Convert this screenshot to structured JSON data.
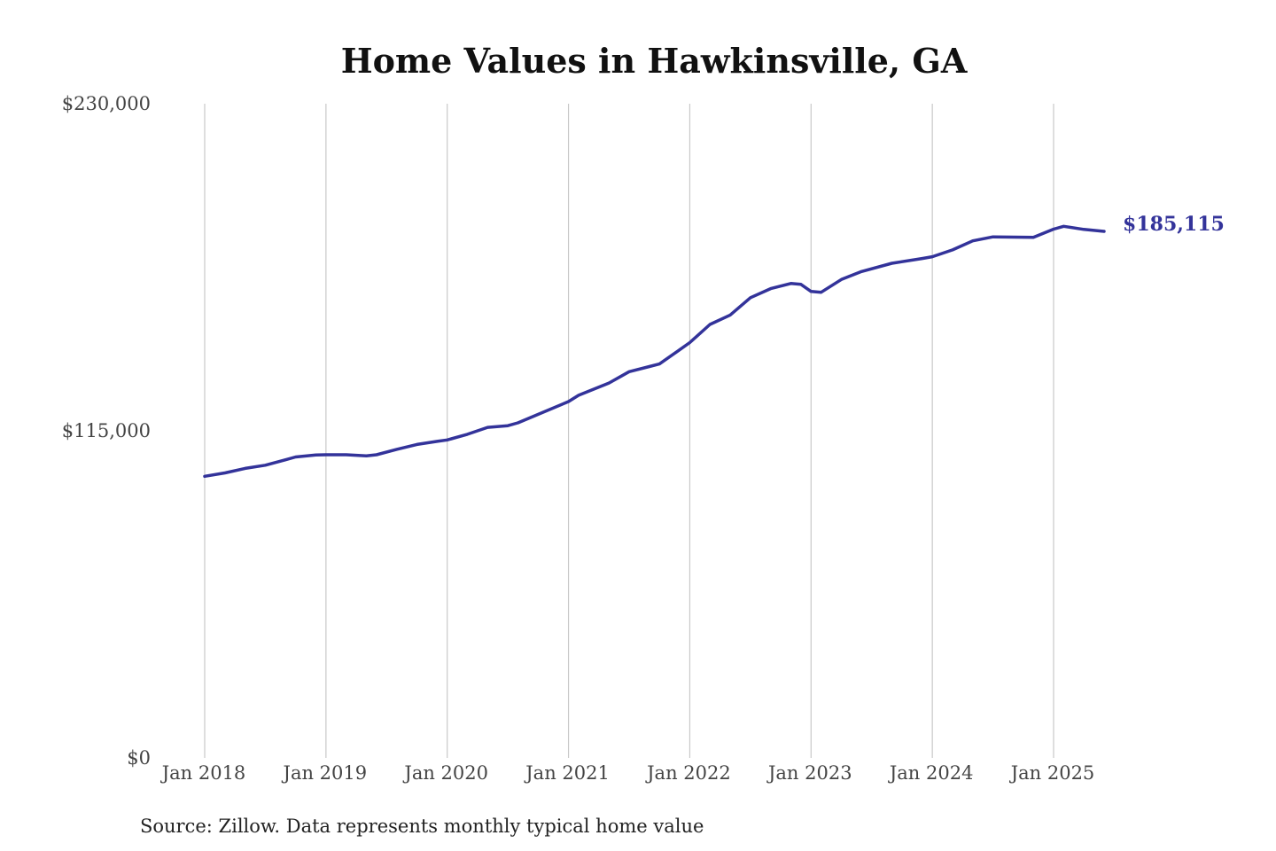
{
  "chart_data": {
    "type": "line",
    "title": "Home Values in Hawkinsville, GA",
    "xlabel": "",
    "ylabel": "",
    "ylim": [
      0,
      230000
    ],
    "y_ticks": [
      {
        "value": 0,
        "label": "$0"
      },
      {
        "value": 115000,
        "label": "$115,000"
      },
      {
        "value": 230000,
        "label": "$230,000"
      }
    ],
    "x_ticks": [
      {
        "value": "2018-01",
        "label": "Jan 2018"
      },
      {
        "value": "2019-01",
        "label": "Jan 2019"
      },
      {
        "value": "2020-01",
        "label": "Jan 2020"
      },
      {
        "value": "2021-01",
        "label": "Jan 2021"
      },
      {
        "value": "2022-01",
        "label": "Jan 2022"
      },
      {
        "value": "2023-01",
        "label": "Jan 2023"
      },
      {
        "value": "2024-01",
        "label": "Jan 2024"
      },
      {
        "value": "2025-01",
        "label": "Jan 2025"
      }
    ],
    "grid": "vertical",
    "series": [
      {
        "color": "#33339a",
        "end_label": "$185,115",
        "points": [
          [
            "2018-01",
            99000
          ],
          [
            "2018-03",
            100200
          ],
          [
            "2018-05",
            101800
          ],
          [
            "2018-07",
            102900
          ],
          [
            "2018-09",
            104800
          ],
          [
            "2018-10",
            105800
          ],
          [
            "2018-12",
            106500
          ],
          [
            "2019-01",
            106600
          ],
          [
            "2019-03",
            106600
          ],
          [
            "2019-05",
            106200
          ],
          [
            "2019-06",
            106600
          ],
          [
            "2019-08",
            108500
          ],
          [
            "2019-10",
            110200
          ],
          [
            "2019-12",
            111300
          ],
          [
            "2020-01",
            111800
          ],
          [
            "2020-03",
            113800
          ],
          [
            "2020-05",
            116200
          ],
          [
            "2020-07",
            116800
          ],
          [
            "2020-08",
            117800
          ],
          [
            "2020-10",
            120800
          ],
          [
            "2021-01",
            125300
          ],
          [
            "2021-02",
            127500
          ],
          [
            "2021-05",
            131800
          ],
          [
            "2021-07",
            135800
          ],
          [
            "2021-09",
            137600
          ],
          [
            "2021-10",
            138500
          ],
          [
            "2021-12",
            143500
          ],
          [
            "2022-01",
            146000
          ],
          [
            "2022-03",
            152400
          ],
          [
            "2022-05",
            155700
          ],
          [
            "2022-07",
            161800
          ],
          [
            "2022-09",
            165000
          ],
          [
            "2022-11",
            166800
          ],
          [
            "2022-12",
            166500
          ],
          [
            "2023-01",
            164000
          ],
          [
            "2023-02",
            163700
          ],
          [
            "2023-04",
            168200
          ],
          [
            "2023-06",
            171000
          ],
          [
            "2023-09",
            173900
          ],
          [
            "2023-12",
            175600
          ],
          [
            "2024-01",
            176200
          ],
          [
            "2024-03",
            178600
          ],
          [
            "2024-05",
            181800
          ],
          [
            "2024-07",
            183200
          ],
          [
            "2024-09",
            183100
          ],
          [
            "2024-11",
            183000
          ],
          [
            "2025-01",
            185900
          ],
          [
            "2025-02",
            186900
          ],
          [
            "2025-04",
            185800
          ],
          [
            "2025-06",
            185115
          ]
        ]
      }
    ]
  },
  "footer": {
    "source": "Source: Zillow. Data represents monthly typical home value"
  }
}
